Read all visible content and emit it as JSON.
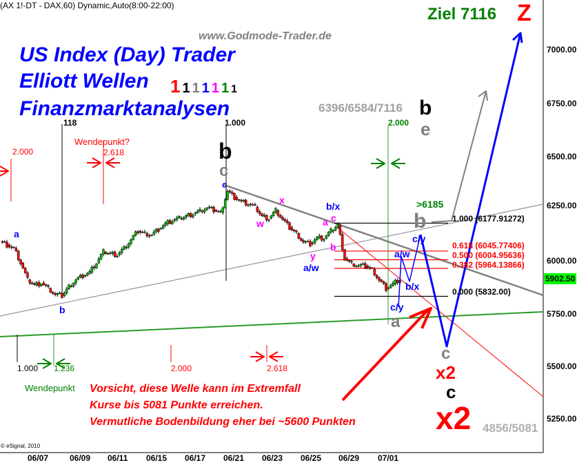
{
  "header": "(AX 1!-DT - DAX,60) Dynamic,Auto(8:00-22:00)",
  "watermark": "www.Godmode-Trader.de",
  "titles": [
    "US Index (Day) Trader",
    "Elliott Wellen",
    "Finanzmarktanalysen"
  ],
  "degree_ones": [
    {
      "text": "1",
      "color": "#ff0000"
    },
    {
      "text": "1",
      "color": "#000000"
    },
    {
      "text": "1",
      "color": "#808080"
    },
    {
      "text": "1",
      "color": "#0000ff"
    },
    {
      "text": "1",
      "color": "#ff00ff"
    },
    {
      "text": "1",
      "color": "#008000"
    },
    {
      "text": "1",
      "color": "#000000"
    }
  ],
  "target": {
    "label": "Ziel 7116",
    "letter": "Z"
  },
  "targets_text": "6396/6584/7116",
  "targets_b": "b",
  "targets_e": "e",
  "time_fibs": {
    "t118": "118",
    "t1000_top": "1.000",
    "t2000_green": "2.000",
    "t2000_red": "2.000",
    "t2618_top": "2.618",
    "wendepunkt_q": "Wendepunkt?",
    "b1000": "1.000",
    "b1236": "1.236",
    "b2000": "2.000",
    "b2618": "2.618",
    "wendepunkt": "Wendepunkt"
  },
  "warning": [
    "Vorsicht, diese Welle kann im Extremfall",
    "Kurse bis 5081 Punkte erreichen.",
    "Vermutliche Bodenbildung eher bei ~5600 Punkten"
  ],
  "wave_labels": {
    "a_left": "a",
    "b_left": "b",
    "b_black": "b",
    "c_gray": "c",
    "c_blue": "c",
    "x_mag": "x",
    "w_mag": "w",
    "y_mag": "y",
    "aw1": "a/w",
    "bx1": "b/x",
    "a_mag": "a",
    "c_mag": "c",
    "b_mag": "b",
    "cy1": "c/y",
    "a_gray": "a",
    "aw2": "a/w",
    "bx2": "b/x",
    "cy2": "c/y",
    "b_gray": "b",
    "gt6185": ">6185",
    "c_gray2": "c",
    "x2_small": "x2",
    "c_black": "c",
    "x2_big": "x2",
    "low_targets": "4856/5081"
  },
  "fib_levels": [
    {
      "label": "1.000 (6177.91272)",
      "value": 6177.91272,
      "color": "#000000"
    },
    {
      "label": "0.618 (6045.77406)",
      "value": 6045.77406,
      "color": "#ff0000"
    },
    {
      "label": "0.500 (6004.95636)",
      "value": 6004.95636,
      "color": "#ff0000"
    },
    {
      "label": "0.382 (5964.13866)",
      "value": 5964.13866,
      "color": "#ff0000"
    },
    {
      "label": "0.000 (5832.00)",
      "value": 5832.0,
      "color": "#000000"
    }
  ],
  "last_price": "5902.50",
  "last_price_color": "#00ff00",
  "copyright": "© eSignal, 2010",
  "chart_data": {
    "type": "candlestick",
    "title": "(AX 1!-DT - DAX,60) Dynamic,Auto(8:00-22:00)",
    "x_tick_labels": [
      "06/07",
      "06/09",
      "06/11",
      "06/15",
      "06/17",
      "06/21",
      "06/23",
      "06/25",
      "06/29",
      "07/01"
    ],
    "y_tick_labels": [
      "7000.00",
      "6750.00",
      "6500.00",
      "6250.00",
      "6000.00",
      "5750.00",
      "5500.00",
      "5250.00"
    ],
    "ylim": [
      5060,
      7260
    ],
    "grid": false,
    "series": [
      {
        "approx_closes": [
          6091,
          6075,
          6059,
          5990,
          5910,
          5885,
          5896,
          5870,
          5840,
          5835,
          5880,
          5912,
          5930,
          5945,
          5990,
          6042,
          6035,
          6028,
          6060,
          6100,
          6140,
          6130,
          6124,
          6150,
          6175,
          6189,
          6200,
          6212,
          6222,
          6235,
          6250,
          6240,
          6228,
          6330,
          6300,
          6280,
          6268,
          6254,
          6210,
          6200,
          6238,
          6195,
          6157,
          6130,
          6090,
          6080,
          6108,
          6105,
          6140,
          6170,
          6010,
          5985,
          5977,
          5975,
          5960,
          5910,
          5870,
          5890,
          5912
        ]
      }
    ]
  }
}
